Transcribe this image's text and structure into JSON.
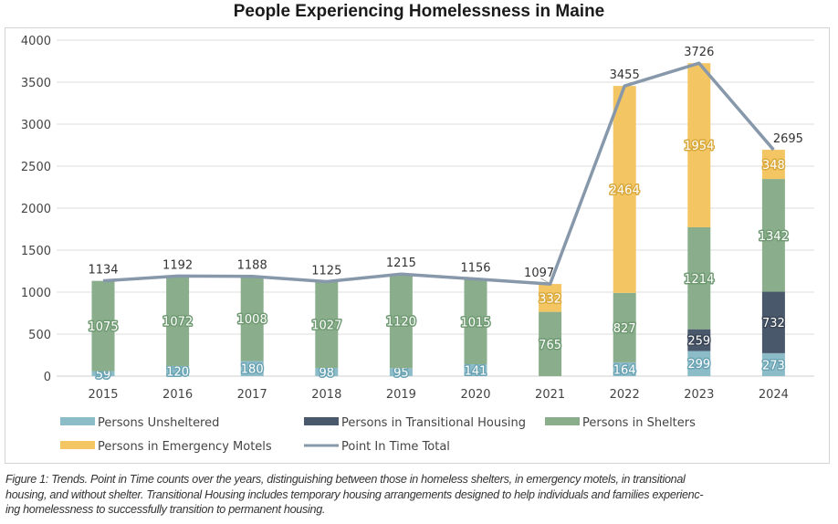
{
  "chart_data": {
    "type": "bar",
    "title": "People Experiencing Homelessness in Maine",
    "xlabel": "",
    "ylabel": "",
    "ylim": [
      0,
      4000
    ],
    "yticks": [
      0,
      500,
      1000,
      1500,
      2000,
      2500,
      3000,
      3500,
      4000
    ],
    "grid": true,
    "legend_position": "bottom",
    "categories": [
      "2015",
      "2016",
      "2017",
      "2018",
      "2019",
      "2020",
      "2021",
      "2022",
      "2023",
      "2024"
    ],
    "series": [
      {
        "name": "Persons Unsheltered",
        "kind": "bar",
        "color": "#8cbcc8",
        "label_stroke": "#6aa3b3",
        "values": [
          59,
          120,
          180,
          98,
          95,
          141,
          0,
          164,
          299,
          273
        ]
      },
      {
        "name": "Persons in Transitional Housing",
        "kind": "bar",
        "color": "#4a586b",
        "label_stroke": "#3a4656",
        "values": [
          0,
          0,
          0,
          0,
          0,
          0,
          0,
          0,
          259,
          732
        ]
      },
      {
        "name": "Persons in Shelters",
        "kind": "bar",
        "color": "#8aae8c",
        "label_stroke": "#6f9a72",
        "values": [
          1075,
          1072,
          1008,
          1027,
          1120,
          1015,
          765,
          827,
          1214,
          1342
        ]
      },
      {
        "name": "Persons in Emergency Motels",
        "kind": "bar",
        "color": "#f3c563",
        "label_stroke": "#d9a93c",
        "values": [
          0,
          0,
          0,
          0,
          0,
          0,
          332,
          2464,
          1954,
          348
        ]
      },
      {
        "name": "Point In Time Total",
        "kind": "line",
        "color": "#8798ab",
        "values": [
          1134,
          1192,
          1188,
          1125,
          1215,
          1156,
          1097,
          3455,
          3726,
          2695
        ]
      }
    ]
  },
  "caption": [
    "Figure 1: Trends. Point in Time counts over the years, distinguishing between those in homeless shelters, in emergency motels, in transitional",
    "housing, and without shelter. Transitional Housing includes temporary housing arrangements designed to help individuals and families experienc-",
    "ing homelessness to successfully transition to permanent housing."
  ]
}
